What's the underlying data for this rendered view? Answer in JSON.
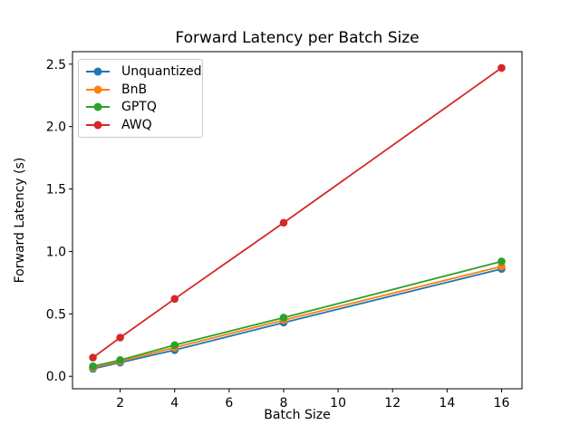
{
  "figure": {
    "background": "#ffffff",
    "axis_color": "#000000",
    "text_color": "#000000",
    "legend_border_color": "#cccccc"
  },
  "chart_data": {
    "type": "line",
    "title": "Forward Latency per Batch Size",
    "xlabel": "Batch Size",
    "ylabel": "Forward Latency (s)",
    "x": [
      1,
      2,
      4,
      8,
      16
    ],
    "series": [
      {
        "name": "Unquantized",
        "color": "#1f77b4",
        "marker": "circle",
        "values": [
          0.06,
          0.11,
          0.21,
          0.43,
          0.86
        ]
      },
      {
        "name": "BnB",
        "color": "#ff7f0e",
        "marker": "circle",
        "values": [
          0.07,
          0.12,
          0.23,
          0.45,
          0.88
        ]
      },
      {
        "name": "GPTQ",
        "color": "#2ca02c",
        "marker": "circle",
        "values": [
          0.08,
          0.13,
          0.25,
          0.47,
          0.92
        ]
      },
      {
        "name": "AWQ",
        "color": "#d62728",
        "marker": "circle",
        "values": [
          0.15,
          0.31,
          0.62,
          1.23,
          2.47
        ]
      }
    ],
    "xlim": [
      0.25,
      16.75
    ],
    "ylim": [
      -0.1,
      2.6
    ],
    "xticks": [
      2,
      4,
      6,
      8,
      10,
      12,
      14,
      16
    ],
    "yticks": [
      0.0,
      0.5,
      1.0,
      1.5,
      2.0,
      2.5
    ],
    "xtick_labels": [
      "2",
      "4",
      "6",
      "8",
      "10",
      "12",
      "14",
      "16"
    ],
    "ytick_labels": [
      "0.0",
      "0.5",
      "1.0",
      "1.5",
      "2.0",
      "2.5"
    ],
    "legend_position": "upper left",
    "grid": false
  }
}
